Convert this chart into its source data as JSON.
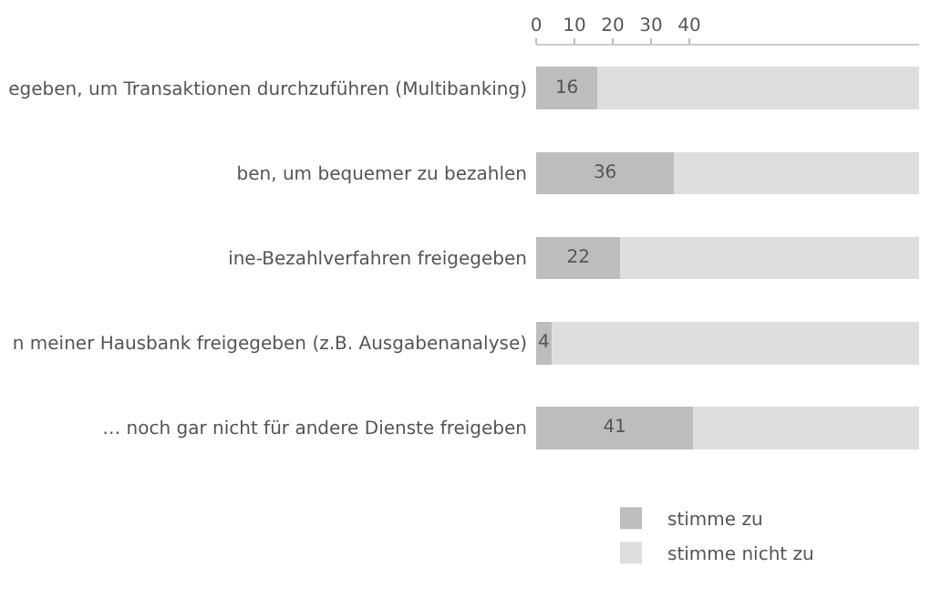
{
  "chart_data": {
    "type": "bar",
    "orientation": "horizontal",
    "stacked": true,
    "categories": [
      "egeben, um Transaktionen durchzuführen (Multibanking)",
      "ben, um bequemer zu bezahlen",
      "ine-Bezahlverfahren freigegeben",
      "n meiner Hausbank freigegeben (z.B. Ausgabenanalyse)",
      "… noch gar nicht für andere Dienste freigeben"
    ],
    "series": [
      {
        "name": "stimme zu",
        "color": "#bdbdbd",
        "values": [
          16,
          36,
          22,
          4,
          41
        ],
        "value_labels": [
          "16",
          "36",
          "22",
          "4",
          "41"
        ]
      },
      {
        "name": "stimme nicht zu",
        "color": "#dedede",
        "values": [
          84,
          64,
          78,
          96,
          59
        ]
      }
    ],
    "xlim": [
      0,
      100
    ],
    "xticks": [
      0,
      10,
      20,
      30,
      40
    ],
    "legend": "bottom"
  }
}
